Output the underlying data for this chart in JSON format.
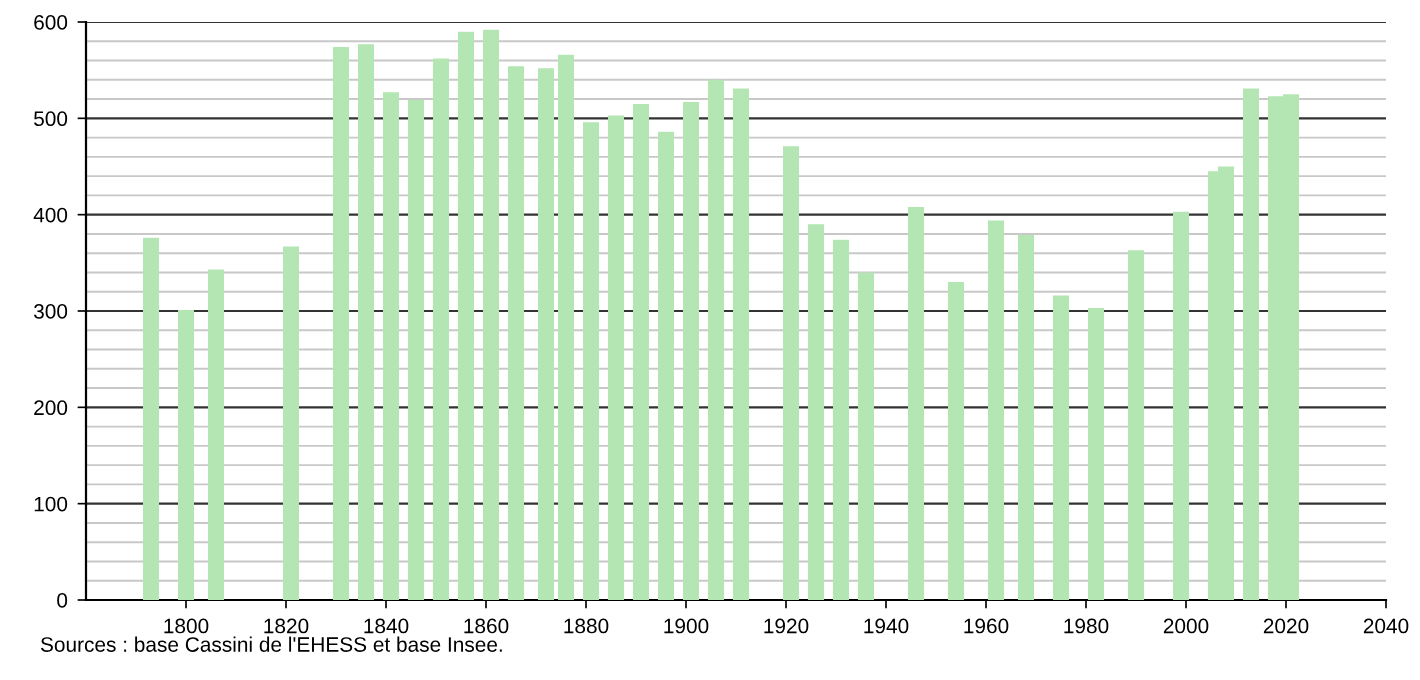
{
  "chart_data": {
    "type": "bar",
    "x": [
      1793,
      1800,
      1806,
      1821,
      1831,
      1836,
      1841,
      1846,
      1851,
      1856,
      1861,
      1866,
      1872,
      1876,
      1881,
      1886,
      1891,
      1896,
      1901,
      1906,
      1911,
      1921,
      1926,
      1931,
      1936,
      1946,
      1954,
      1962,
      1968,
      1975,
      1982,
      1990,
      1999,
      2006,
      2008,
      2013,
      2018,
      2021
    ],
    "values": [
      376,
      301,
      343,
      367,
      574,
      577,
      527,
      519,
      562,
      590,
      592,
      554,
      552,
      566,
      496,
      503,
      515,
      486,
      517,
      540,
      531,
      471,
      390,
      374,
      340,
      408,
      330,
      394,
      379,
      316,
      303,
      363,
      403,
      445,
      450,
      531,
      523,
      525
    ],
    "color": "#b3e6b3",
    "xlim": [
      1780,
      2040
    ],
    "xticks": [
      1800,
      1820,
      1840,
      1860,
      1880,
      1900,
      1920,
      1940,
      1960,
      1980,
      2000,
      2020,
      2040
    ],
    "ylim": [
      0,
      600
    ],
    "yticks": [
      0,
      100,
      200,
      300,
      400,
      500,
      600
    ],
    "grid": "y",
    "annotations": [
      "Sources : base Cassini de l'EHESS et base Insee."
    ]
  }
}
